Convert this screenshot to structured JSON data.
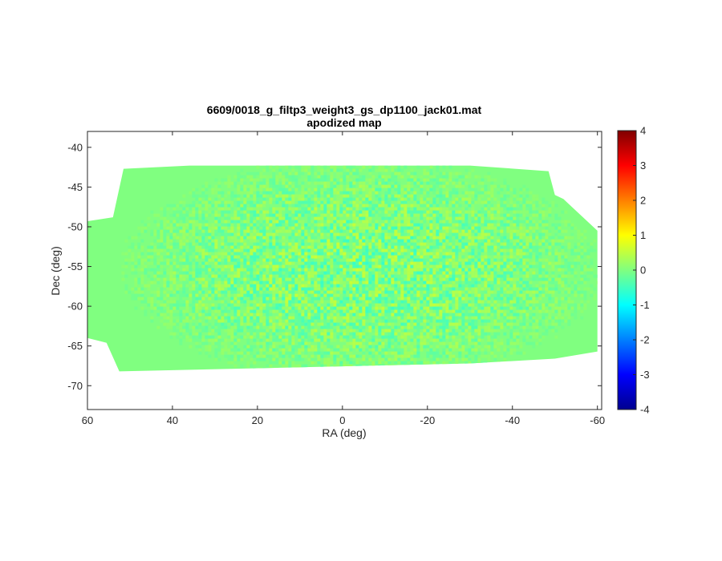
{
  "chart_data": {
    "type": "heatmap",
    "title": "6609/0018_g_filtp3_weight3_gs_dp1100_jack01.mat",
    "subtitle": "apodized map",
    "xlabel": "RA (deg)",
    "ylabel": "Dec (deg)",
    "xlim": [
      60,
      -61
    ],
    "ylim": [
      -73,
      -38
    ],
    "x_reversed": true,
    "x_ticks": [
      60,
      40,
      20,
      0,
      -20,
      -40,
      -60
    ],
    "x_tick_labels": [
      "60",
      "40",
      "20",
      "0",
      "-20",
      "-40",
      "-60"
    ],
    "y_ticks": [
      -40,
      -45,
      -50,
      -55,
      -60,
      -65,
      -70
    ],
    "y_tick_labels": [
      "-40",
      "-45",
      "-50",
      "-55",
      "-60",
      "-65",
      "-70"
    ],
    "colorbar": {
      "colormap": "jet",
      "range": [
        -4,
        4
      ],
      "ticks": [
        4,
        3,
        2,
        1,
        0,
        -1,
        -2,
        -3,
        -4
      ],
      "tick_labels": [
        "4",
        "3",
        "2",
        "1",
        "0",
        "-1",
        "-2",
        "-3",
        "-4"
      ]
    },
    "grid": false,
    "map_background_value": 0.0,
    "map_background_color": "#80ff80",
    "map_noise_range": [
      -0.6,
      0.6
    ],
    "map_footprint": [
      {
        "ra": 51.5,
        "dec_top": -42.7
      },
      {
        "ra": 36,
        "dec_top": -42.3
      },
      {
        "ra": -30,
        "dec_top": -42.3
      },
      {
        "ra": -48.5,
        "dec_top": -43.0
      },
      {
        "ra": -50,
        "dec_top": -46.0
      },
      {
        "ra": -52,
        "dec_top": -46.5
      },
      {
        "ra": -58,
        "dec_top": -49.5
      },
      {
        "ra": -60,
        "dec_top": -50.5
      },
      {
        "ra": -60,
        "dec_bottom": -65.7
      },
      {
        "ra": -50,
        "dec_bottom": -66.6
      },
      {
        "ra": -30,
        "dec_bottom": -67.2
      },
      {
        "ra": 52.5,
        "dec_bottom": -68.2
      },
      {
        "ra": 55.5,
        "dec_bottom": -64.6
      },
      {
        "ra": 60,
        "dec_bottom": -64.0
      },
      {
        "ra": 60,
        "dec_top": -49.3
      },
      {
        "ra": 54,
        "dec_top": -48.8
      }
    ]
  }
}
